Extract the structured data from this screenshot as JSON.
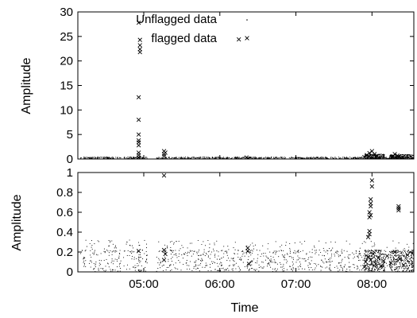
{
  "chart_data": [
    {
      "type": "scatter",
      "panel": "top",
      "xlabel": "",
      "ylabel": "Amplitude",
      "ylim": [
        0,
        30
      ],
      "yticks": [
        "0",
        "5",
        "10",
        "15",
        "20",
        "25",
        "30"
      ],
      "xlim": [
        "04:08",
        "08:33"
      ],
      "xticks": [],
      "grid": false,
      "legend": {
        "placement": "top-right",
        "entries": [
          "Unflagged data",
          "flagged data"
        ]
      },
      "series": [
        {
          "name": "Unflagged data",
          "marker": "dot",
          "description_of_values": "dense baseline amplitude near 0–0.3 across time"
        },
        {
          "name": "flagged data",
          "marker": "x",
          "points": [
            {
              "t": "04:51",
              "y": 0.05
            },
            {
              "t": "04:56",
              "y": 0.3
            },
            {
              "t": "04:56",
              "y": 0.8
            },
            {
              "t": "04:56",
              "y": 1.3
            },
            {
              "t": "04:56",
              "y": 2.8
            },
            {
              "t": "04:56",
              "y": 3.4
            },
            {
              "t": "04:56",
              "y": 3.8
            },
            {
              "t": "04:56",
              "y": 5.0
            },
            {
              "t": "04:56",
              "y": 8.0
            },
            {
              "t": "04:56",
              "y": 12.6
            },
            {
              "t": "04:57",
              "y": 21.8
            },
            {
              "t": "04:57",
              "y": 22.4
            },
            {
              "t": "04:57",
              "y": 23.2
            },
            {
              "t": "04:57",
              "y": 24.3
            },
            {
              "t": "04:56",
              "y": 27.8
            },
            {
              "t": "05:16",
              "y": 0.6
            },
            {
              "t": "05:16",
              "y": 1.0
            },
            {
              "t": "05:16",
              "y": 1.6
            },
            {
              "t": "05:17",
              "y": 1.3
            },
            {
              "t": "06:15",
              "y": 24.4
            },
            {
              "t": "06:21",
              "y": 0.3
            },
            {
              "t": "06:22",
              "y": 0.1
            },
            {
              "t": "07:54",
              "y": 0.4
            },
            {
              "t": "07:56",
              "y": 0.8
            },
            {
              "t": "07:58",
              "y": 1.2
            },
            {
              "t": "08:00",
              "y": 1.6
            },
            {
              "t": "08:02",
              "y": 1.0
            },
            {
              "t": "08:04",
              "y": 0.6
            },
            {
              "t": "08:16",
              "y": 0.5
            },
            {
              "t": "08:18",
              "y": 1.0
            },
            {
              "t": "08:20",
              "y": 0.7
            }
          ]
        }
      ]
    },
    {
      "type": "scatter",
      "panel": "bottom",
      "xlabel": "Time",
      "ylabel": "Amplitude",
      "ylim": [
        0,
        1
      ],
      "yticks": [
        "0",
        "0.2",
        "0.4",
        "0.6",
        "0.8",
        "1"
      ],
      "xlim": [
        "04:08",
        "08:33"
      ],
      "xticks": [
        "05:00",
        "06:00",
        "07:00",
        "08:00"
      ],
      "grid": false,
      "series": [
        {
          "name": "Unflagged data",
          "marker": "dot",
          "description_of_values": "scattered amplitudes mostly 0–0.3, denser clusters near 07:55–08:30"
        },
        {
          "name": "flagged data",
          "marker": "x",
          "points": [
            {
              "t": "04:56",
              "y": 0.21
            },
            {
              "t": "04:57",
              "y": 0.0
            },
            {
              "t": "05:16",
              "y": 0.97
            },
            {
              "t": "05:16",
              "y": 0.22
            },
            {
              "t": "05:16",
              "y": 0.12
            },
            {
              "t": "05:17",
              "y": 0.18
            },
            {
              "t": "06:22",
              "y": 0.21
            },
            {
              "t": "06:22",
              "y": 0.24
            },
            {
              "t": "06:23",
              "y": 0.08
            },
            {
              "t": "08:00",
              "y": 0.92
            },
            {
              "t": "08:00",
              "y": 0.86
            },
            {
              "t": "07:59",
              "y": 0.73
            },
            {
              "t": "07:59",
              "y": 0.69
            },
            {
              "t": "07:59",
              "y": 0.66
            },
            {
              "t": "07:58",
              "y": 0.6
            },
            {
              "t": "07:59",
              "y": 0.57
            },
            {
              "t": "07:58",
              "y": 0.55
            },
            {
              "t": "07:58",
              "y": 0.41
            },
            {
              "t": "07:58",
              "y": 0.38
            },
            {
              "t": "07:57",
              "y": 0.35
            },
            {
              "t": "08:21",
              "y": 0.66
            },
            {
              "t": "08:21",
              "y": 0.64
            },
            {
              "t": "08:21",
              "y": 0.62
            },
            {
              "t": "07:54",
              "y": 0.05
            },
            {
              "t": "07:55",
              "y": 0.1
            },
            {
              "t": "07:57",
              "y": 0.15
            },
            {
              "t": "07:59",
              "y": 0.12
            },
            {
              "t": "08:01",
              "y": 0.18
            },
            {
              "t": "08:03",
              "y": 0.08
            },
            {
              "t": "08:05",
              "y": 0.14
            },
            {
              "t": "08:07",
              "y": 0.06
            },
            {
              "t": "08:09",
              "y": 0.11
            },
            {
              "t": "08:12",
              "y": 0.16
            },
            {
              "t": "08:15",
              "y": 0.09
            },
            {
              "t": "08:18",
              "y": 0.2
            },
            {
              "t": "08:22",
              "y": 0.13
            },
            {
              "t": "08:25",
              "y": 0.07
            },
            {
              "t": "08:28",
              "y": 0.17
            }
          ]
        }
      ]
    }
  ]
}
